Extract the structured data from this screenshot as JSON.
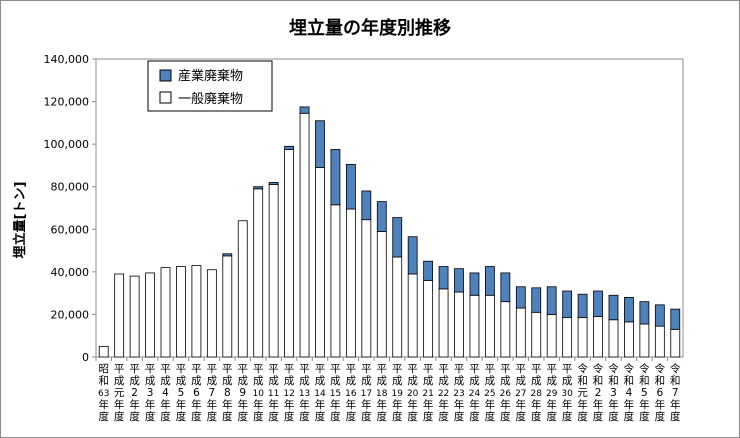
{
  "chart_data": {
    "type": "bar",
    "stacked": true,
    "title": "埋立量の年度別推移",
    "ylabel": "埋立量[トン]",
    "xlabel": "",
    "ylim": [
      0,
      140000
    ],
    "yticks": [
      "0",
      "20,000",
      "40,000",
      "60,000",
      "80,000",
      "100,000",
      "120,000",
      "140,000"
    ],
    "grid": false,
    "legend_position": "top-left",
    "categories": [
      "昭和63年度",
      "平成元年度",
      "平成2年度",
      "平成3年度",
      "平成4年度",
      "平成5年度",
      "平成6年度",
      "平成7年度",
      "平成8年度",
      "平成9年度",
      "平成10年度",
      "平成11年度",
      "平成12年度",
      "平成13年度",
      "平成14年度",
      "平成15年度",
      "平成16年度",
      "平成17年度",
      "平成18年度",
      "平成19年度",
      "平成20年度",
      "平成21年度",
      "平成22年度",
      "平成23年度",
      "平成24年度",
      "平成25年度",
      "平成26年度",
      "平成27年度",
      "平成28年度",
      "平成29年度",
      "平成30年度",
      "令和元年度",
      "令和2年度",
      "令和3年度",
      "令和4年度",
      "令和5年度",
      "令和6年度",
      "令和7年度"
    ],
    "series": [
      {
        "name": "一般廃棄物",
        "color": "#ffffff",
        "values": [
          5000,
          39000,
          38000,
          39500,
          42000,
          42500,
          43000,
          41000,
          47500,
          64000,
          79000,
          81000,
          97500,
          114500,
          89000,
          71500,
          69500,
          64500,
          59000,
          47000,
          39000,
          36000,
          32000,
          30500,
          29000,
          29000,
          26000,
          23000,
          21000,
          20000,
          18500,
          18500,
          19000,
          17500,
          16500,
          15500,
          14500,
          13000
        ]
      },
      {
        "name": "産業廃棄物",
        "color": "#4f81bd",
        "values": [
          0,
          0,
          0,
          0,
          0,
          0,
          0,
          0,
          1000,
          0,
          1000,
          1000,
          1500,
          3000,
          22000,
          26000,
          21000,
          13500,
          14000,
          18500,
          17500,
          9000,
          10500,
          11000,
          10500,
          13500,
          13500,
          10000,
          11500,
          13000,
          12500,
          11000,
          12000,
          11500,
          11500,
          10500,
          10000,
          9500
        ]
      }
    ]
  }
}
